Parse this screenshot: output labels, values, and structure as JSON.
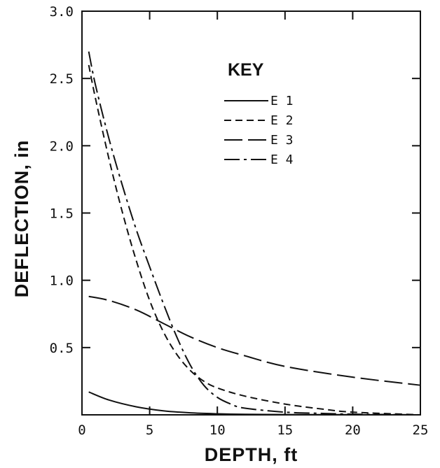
{
  "chart_data": {
    "type": "line",
    "xlabel": "DEPTH, ft",
    "ylabel": "DEFLECTION, in",
    "xlim": [
      0,
      25
    ],
    "ylim": [
      0,
      3.0
    ],
    "xticks": [
      0,
      5,
      10,
      15,
      20,
      25
    ],
    "xtick_labels": [
      "0",
      "5",
      "10",
      "15",
      "20",
      "25"
    ],
    "yticks": [
      0.5,
      1.0,
      1.5,
      2.0,
      2.5,
      3.0
    ],
    "ytick_labels": [
      "0.5",
      "1.0",
      "1.5",
      "2.0",
      "2.5",
      "3.0"
    ],
    "grid": false,
    "legend": {
      "title": "KEY",
      "position": "upper-middle"
    },
    "series": [
      {
        "name": "E 1",
        "dash": "solid",
        "x": [
          0.5,
          2,
          4,
          6,
          8,
          10,
          12,
          15,
          20,
          25
        ],
        "y": [
          0.17,
          0.11,
          0.06,
          0.03,
          0.015,
          0.008,
          0.004,
          0.002,
          0.001,
          0.0
        ]
      },
      {
        "name": "E 2",
        "dash": "dashed",
        "x": [
          0.5,
          1,
          2,
          3,
          4,
          5,
          6,
          7,
          8,
          9,
          10,
          12,
          15,
          18,
          20,
          25
        ],
        "y": [
          2.6,
          2.35,
          1.9,
          1.5,
          1.15,
          0.85,
          0.62,
          0.45,
          0.33,
          0.25,
          0.2,
          0.14,
          0.08,
          0.04,
          0.02,
          0.0
        ]
      },
      {
        "name": "E 3",
        "dash": "long-dash",
        "x": [
          0.5,
          2,
          4,
          6,
          8,
          10,
          12,
          15,
          20,
          25
        ],
        "y": [
          0.88,
          0.85,
          0.78,
          0.68,
          0.58,
          0.5,
          0.44,
          0.36,
          0.28,
          0.22
        ]
      },
      {
        "name": "E 4",
        "dash": "dash-dot",
        "x": [
          0.5,
          1,
          2,
          3,
          4,
          5,
          6,
          7,
          8,
          9,
          10,
          11,
          12,
          15,
          18,
          20,
          25
        ],
        "y": [
          2.7,
          2.45,
          2.05,
          1.7,
          1.38,
          1.1,
          0.83,
          0.58,
          0.37,
          0.22,
          0.13,
          0.08,
          0.05,
          0.02,
          0.01,
          0.005,
          0.0
        ]
      }
    ]
  }
}
